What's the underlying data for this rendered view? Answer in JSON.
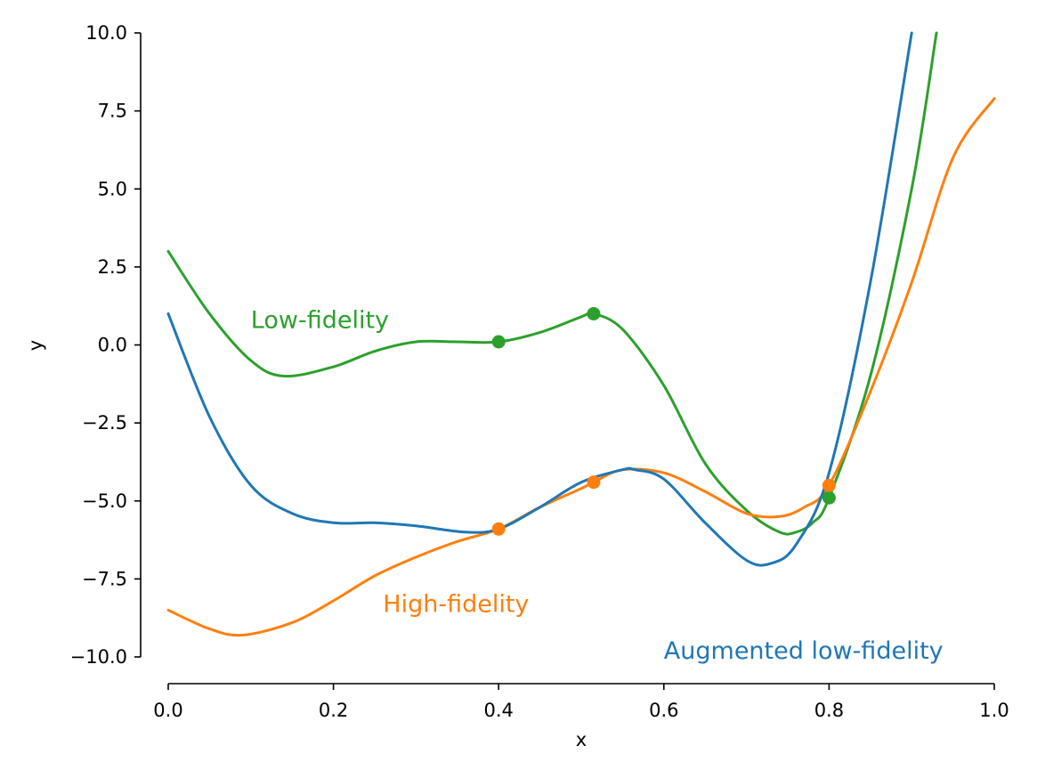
{
  "chart_data": {
    "type": "line",
    "title": "",
    "xlabel": "x",
    "ylabel": "y",
    "xlim": [
      0.0,
      1.0
    ],
    "ylim": [
      -10.0,
      10.0
    ],
    "xticks": [
      "0.0",
      "0.2",
      "0.4",
      "0.6",
      "0.8",
      "1.0"
    ],
    "yticks": [
      "10.0",
      "7.5",
      "5.0",
      "2.5",
      "0.0",
      "−2.5",
      "−5.0",
      "−7.5",
      "−10.0"
    ],
    "grid": false,
    "series": [
      {
        "name": "Low-fidelity",
        "color": "#2ca02c",
        "x": [
          0.0,
          0.05,
          0.1,
          0.14,
          0.2,
          0.25,
          0.3,
          0.35,
          0.4,
          0.45,
          0.5,
          0.515,
          0.55,
          0.6,
          0.65,
          0.7,
          0.74,
          0.76,
          0.78,
          0.8,
          0.85,
          0.9,
          0.93
        ],
        "y": [
          3.0,
          1.0,
          -0.5,
          -1.0,
          -0.7,
          -0.2,
          0.1,
          0.1,
          0.1,
          0.4,
          0.9,
          1.0,
          0.5,
          -1.3,
          -3.8,
          -5.3,
          -6.0,
          -6.0,
          -5.7,
          -4.9,
          -1.0,
          5.0,
          10.0
        ]
      },
      {
        "name": "High-fidelity",
        "color": "#ff7f0e",
        "x": [
          0.0,
          0.05,
          0.09,
          0.15,
          0.2,
          0.25,
          0.3,
          0.35,
          0.4,
          0.45,
          0.5,
          0.515,
          0.55,
          0.6,
          0.65,
          0.7,
          0.74,
          0.77,
          0.8,
          0.85,
          0.9,
          0.95,
          1.0
        ],
        "y": [
          -8.5,
          -9.1,
          -9.3,
          -8.9,
          -8.2,
          -7.4,
          -6.8,
          -6.3,
          -5.9,
          -5.2,
          -4.6,
          -4.4,
          -4.0,
          -4.1,
          -4.7,
          -5.4,
          -5.5,
          -5.2,
          -4.5,
          -1.5,
          2.0,
          6.0,
          7.9
        ]
      },
      {
        "name": "Augmented low-fidelity",
        "color": "#1f77b4",
        "x": [
          0.0,
          0.05,
          0.1,
          0.15,
          0.2,
          0.25,
          0.3,
          0.36,
          0.4,
          0.45,
          0.5,
          0.55,
          0.565,
          0.6,
          0.65,
          0.7,
          0.73,
          0.76,
          0.8,
          0.85,
          0.9
        ],
        "y": [
          1.0,
          -2.3,
          -4.5,
          -5.4,
          -5.7,
          -5.7,
          -5.8,
          -6.0,
          -5.9,
          -5.2,
          -4.4,
          -4.0,
          -4.0,
          -4.3,
          -5.7,
          -6.9,
          -7.0,
          -6.4,
          -4.1,
          2.0,
          10.0
        ]
      }
    ],
    "points": [
      {
        "series": "Low-fidelity",
        "color": "#2ca02c",
        "x": [
          0.4,
          0.515,
          0.8
        ],
        "y": [
          0.1,
          1.0,
          -4.9
        ]
      },
      {
        "series": "High-fidelity",
        "color": "#ff7f0e",
        "x": [
          0.4,
          0.515,
          0.8
        ],
        "y": [
          -5.9,
          -4.4,
          -4.5
        ]
      }
    ],
    "annotations": [
      {
        "text": "Low-fidelity",
        "color": "#2ca02c",
        "x": 0.1,
        "y": 0.8
      },
      {
        "text": "High-fidelity",
        "color": "#ff7f0e",
        "x": 0.26,
        "y": -8.3
      },
      {
        "text": "Augmented low-fidelity",
        "color": "#1f77b4",
        "x": 0.6,
        "y": -9.8
      }
    ]
  }
}
